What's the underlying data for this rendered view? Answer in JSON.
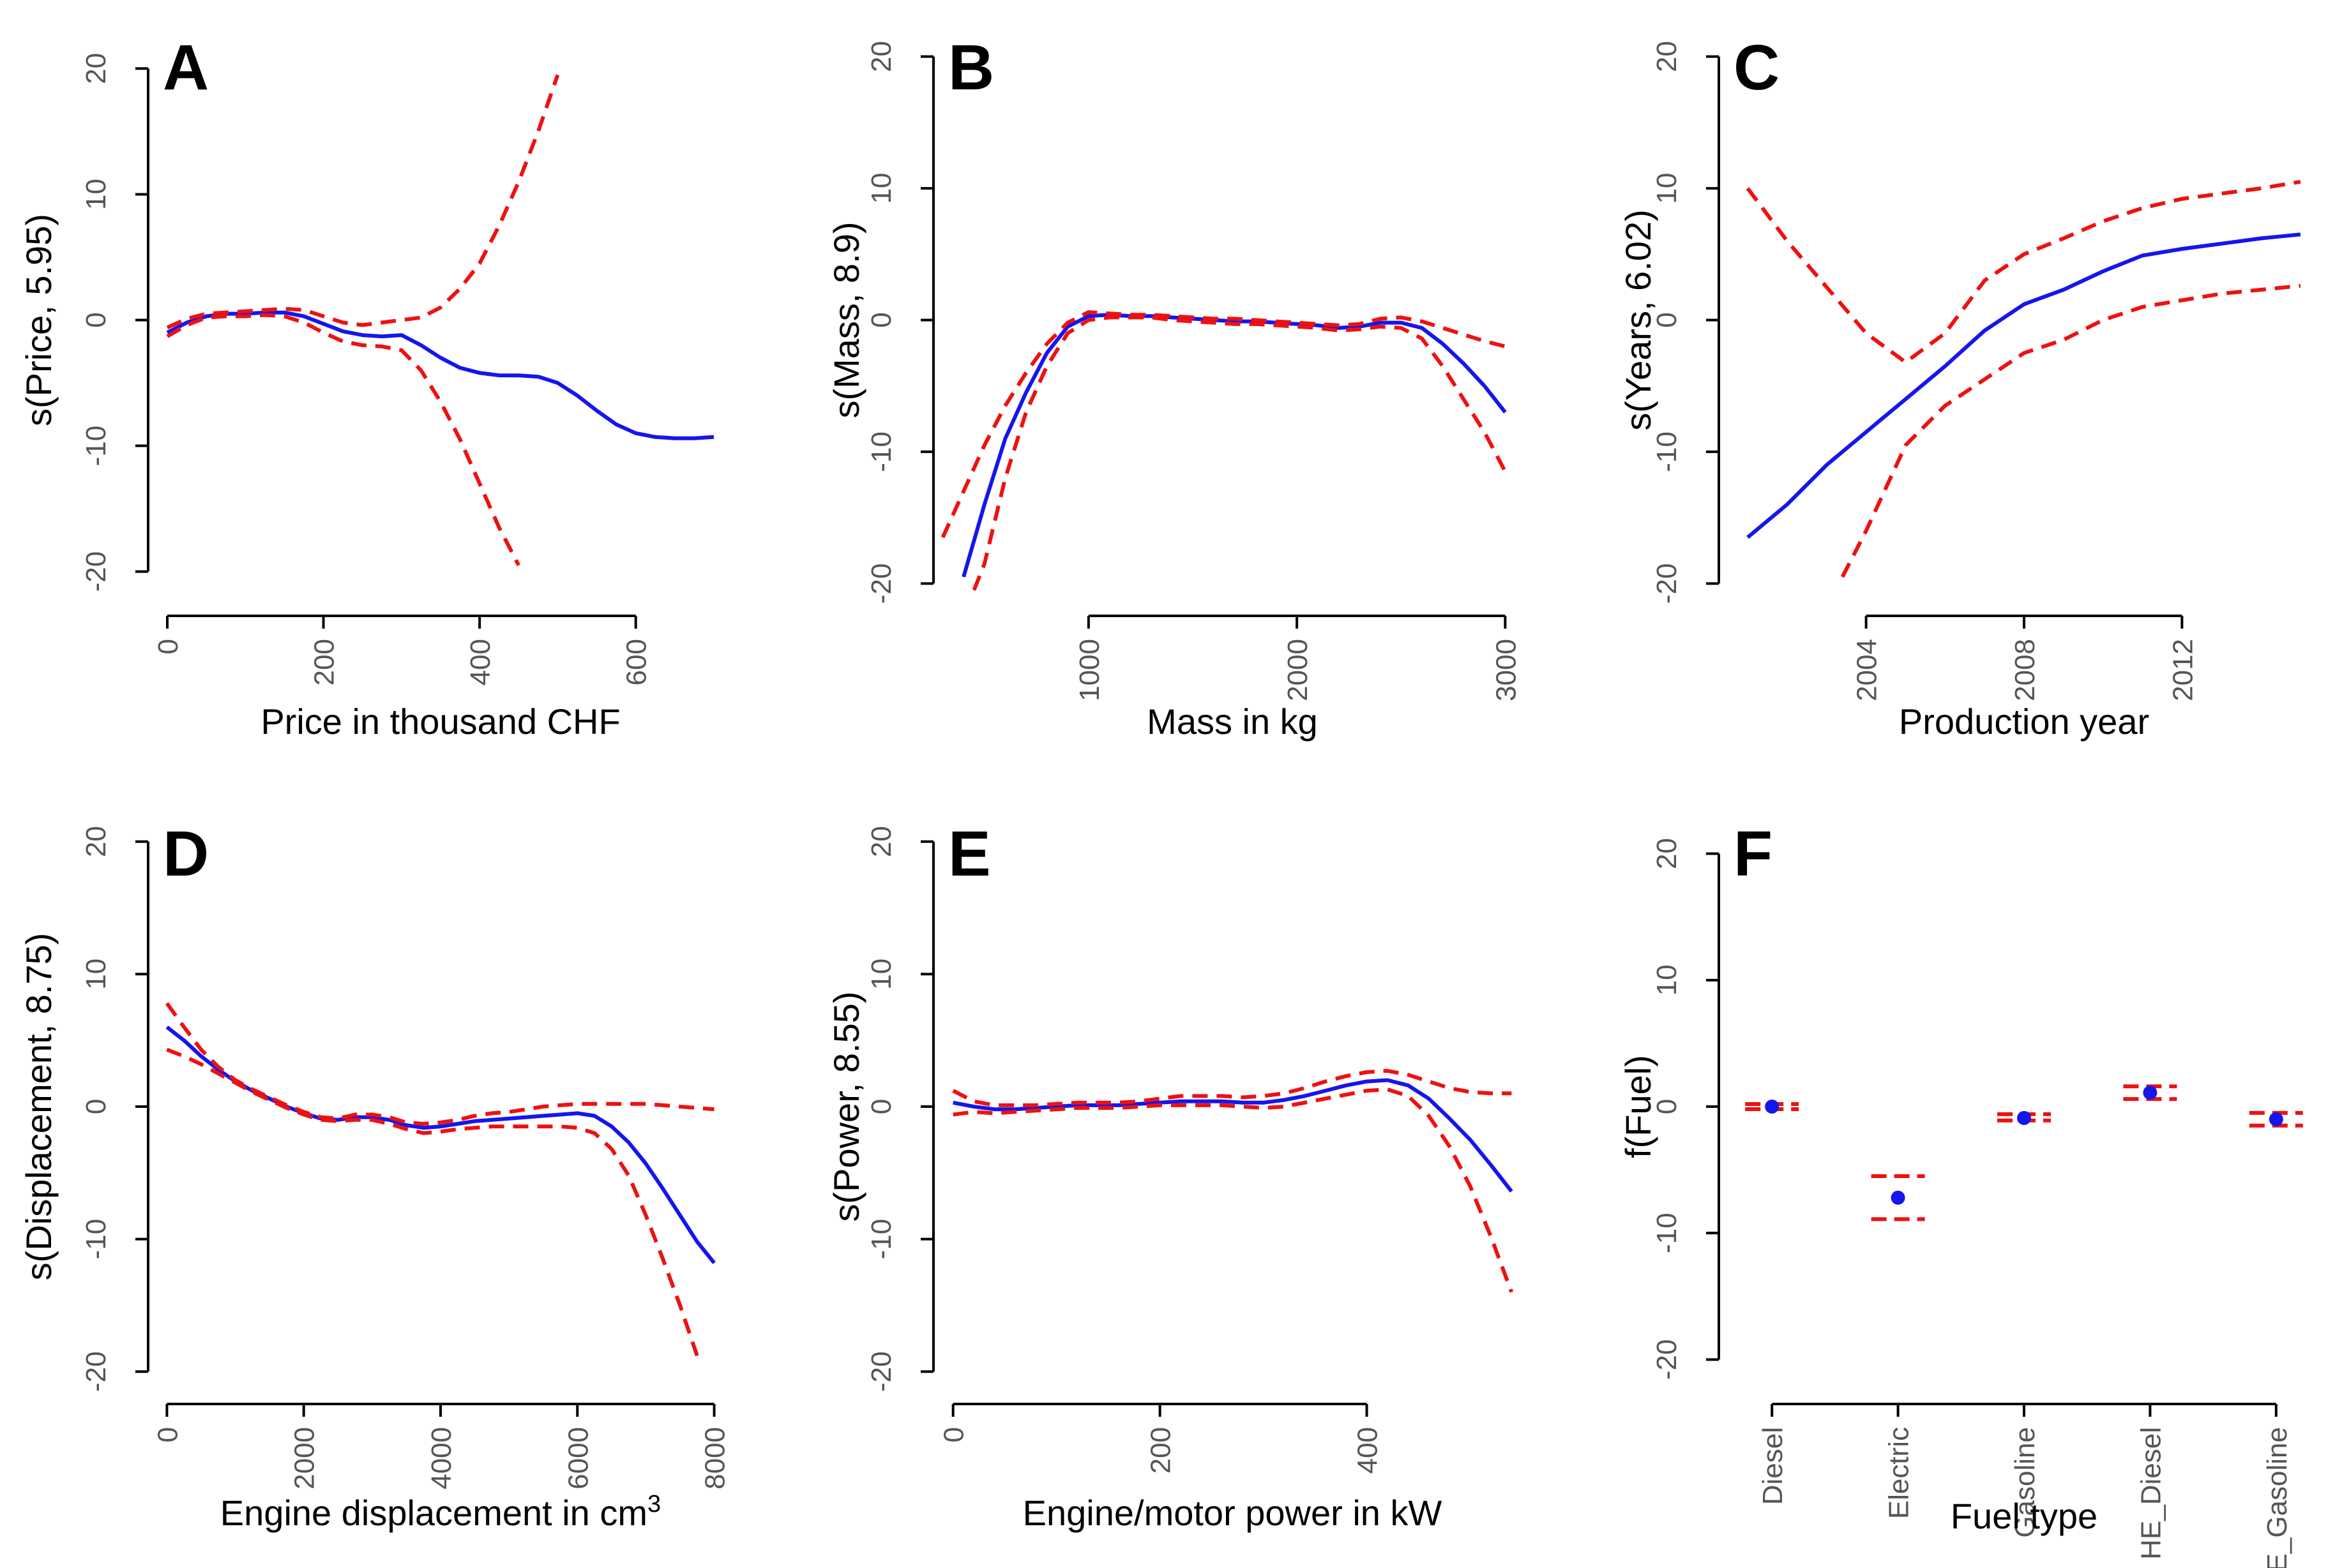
{
  "colors": {
    "estimate": "#1515ee",
    "ci": "#ee1111",
    "axis": "#000000",
    "tick_label": "#555555"
  },
  "chart_data": [
    {
      "panel": "A",
      "type": "line",
      "xlabel": "Price in thousand CHF",
      "ylabel": "s(Price, 5.95)",
      "xlim": [
        -18,
        718
      ],
      "ylim": [
        -22,
        22
      ],
      "xticks": [
        0,
        200,
        400,
        600
      ],
      "xtick_labels": [
        "0",
        "200",
        "400",
        "600"
      ],
      "yticks": [
        -20,
        -10,
        0,
        10,
        20
      ],
      "ytick_labels": [
        "-20",
        "-10",
        "0",
        "10",
        "20"
      ],
      "series": [
        {
          "name": "estimate",
          "style": "solid",
          "x": [
            0,
            25,
            50,
            75,
            100,
            125,
            150,
            175,
            200,
            225,
            250,
            275,
            300,
            325,
            350,
            375,
            400,
            425,
            450,
            475,
            500,
            525,
            550,
            575,
            600,
            625,
            650,
            675,
            700
          ],
          "y": [
            -1.0,
            -0.2,
            0.3,
            0.5,
            0.5,
            0.6,
            0.6,
            0.3,
            -0.3,
            -0.9,
            -1.2,
            -1.3,
            -1.2,
            -2.0,
            -3.0,
            -3.8,
            -4.2,
            -4.4,
            -4.4,
            -4.5,
            -5.0,
            -6.0,
            -7.2,
            -8.3,
            -9.0,
            -9.3,
            -9.4,
            -9.4,
            -9.3
          ]
        },
        {
          "name": "upper 95% CI",
          "style": "dashed",
          "x": [
            0,
            25,
            50,
            75,
            100,
            125,
            150,
            175,
            200,
            225,
            250,
            275,
            300,
            325,
            350,
            375,
            400,
            425,
            450,
            475,
            500
          ],
          "y": [
            -0.6,
            0.1,
            0.5,
            0.6,
            0.7,
            0.8,
            0.9,
            0.8,
            0.3,
            -0.2,
            -0.4,
            -0.2,
            0.0,
            0.2,
            1.0,
            2.5,
            4.5,
            7.5,
            11.0,
            15.0,
            19.5
          ]
        },
        {
          "name": "lower 95% CI",
          "style": "dashed",
          "x": [
            0,
            25,
            50,
            75,
            100,
            125,
            150,
            175,
            200,
            225,
            250,
            275,
            300,
            325,
            350,
            375,
            400,
            425,
            450
          ],
          "y": [
            -1.3,
            -0.4,
            0.2,
            0.3,
            0.3,
            0.4,
            0.3,
            -0.2,
            -1.0,
            -1.7,
            -2.0,
            -2.1,
            -2.4,
            -4.0,
            -6.5,
            -9.5,
            -13.0,
            -16.5,
            -19.5
          ]
        }
      ]
    },
    {
      "panel": "B",
      "type": "line",
      "xlabel": "Mass in kg",
      "ylabel": "s(Mass, 8.9)",
      "xlim": [
        280,
        3100
      ],
      "ylim": [
        -21,
        21
      ],
      "xticks": [
        1000,
        2000,
        3000
      ],
      "xtick_labels": [
        "1000",
        "2000",
        "3000"
      ],
      "yticks": [
        -20,
        -10,
        0,
        10,
        20
      ],
      "ytick_labels": [
        "-20",
        "-10",
        "0",
        "10",
        "20"
      ],
      "series": [
        {
          "name": "estimate",
          "style": "solid",
          "x": [
            400,
            500,
            600,
            700,
            800,
            900,
            1000,
            1100,
            1200,
            1300,
            1400,
            1500,
            1600,
            1700,
            1800,
            1900,
            2000,
            2100,
            2200,
            2300,
            2400,
            2500,
            2600,
            2700,
            2800,
            2900,
            3000
          ],
          "y": [
            -19.5,
            -14.0,
            -9.0,
            -5.5,
            -2.5,
            -0.5,
            0.3,
            0.4,
            0.3,
            0.3,
            0.2,
            0.1,
            0.0,
            -0.1,
            -0.1,
            -0.2,
            -0.3,
            -0.4,
            -0.6,
            -0.5,
            -0.2,
            -0.2,
            -0.6,
            -1.8,
            -3.3,
            -5.0,
            -7.0
          ]
        },
        {
          "name": "upper 95% CI",
          "style": "dashed",
          "x": [
            300,
            400,
            500,
            600,
            700,
            800,
            900,
            1000,
            1100,
            1200,
            1300,
            1400,
            1500,
            1600,
            1700,
            1800,
            1900,
            2000,
            2100,
            2200,
            2300,
            2400,
            2500,
            2600,
            2700,
            2800,
            2900,
            3000
          ],
          "y": [
            -16.5,
            -13.0,
            -9.5,
            -6.5,
            -4.0,
            -1.8,
            -0.2,
            0.6,
            0.5,
            0.4,
            0.4,
            0.3,
            0.2,
            0.1,
            0.1,
            0.0,
            -0.1,
            -0.2,
            -0.3,
            -0.4,
            -0.3,
            0.1,
            0.2,
            -0.1,
            -0.6,
            -1.1,
            -1.6,
            -2.0
          ]
        },
        {
          "name": "lower 95% CI",
          "style": "dashed",
          "x": [
            450,
            500,
            600,
            700,
            800,
            900,
            1000,
            1100,
            1200,
            1300,
            1400,
            1500,
            1600,
            1700,
            1800,
            1900,
            2000,
            2100,
            2200,
            2300,
            2400,
            2500,
            2600,
            2700,
            2800,
            2900,
            3000
          ],
          "y": [
            -20.5,
            -18.5,
            -12.0,
            -7.0,
            -3.5,
            -1.0,
            0.0,
            0.2,
            0.2,
            0.2,
            0.0,
            -0.1,
            -0.2,
            -0.3,
            -0.3,
            -0.4,
            -0.5,
            -0.6,
            -0.8,
            -0.7,
            -0.5,
            -0.6,
            -1.4,
            -3.5,
            -6.0,
            -8.5,
            -11.5
          ]
        }
      ]
    },
    {
      "panel": "C",
      "type": "line",
      "xlabel": "Production year",
      "ylabel": "s(Years, 6.02)",
      "xlim": [
        2000.4,
        2015.6
      ],
      "ylim": [
        -21,
        21
      ],
      "xticks": [
        2004,
        2008,
        2012
      ],
      "xtick_labels": [
        "2004",
        "2008",
        "2012"
      ],
      "yticks": [
        -20,
        -10,
        0,
        10,
        20
      ],
      "ytick_labels": [
        "-20",
        "-10",
        "0",
        "10",
        "20"
      ],
      "series": [
        {
          "name": "estimate",
          "style": "solid",
          "x": [
            2001,
            2002,
            2003,
            2004,
            2005,
            2006,
            2007,
            2008,
            2009,
            2010,
            2011,
            2012,
            2013,
            2014,
            2015
          ],
          "y": [
            -16.5,
            -14.0,
            -11.0,
            -8.5,
            -6.0,
            -3.5,
            -0.8,
            1.2,
            2.3,
            3.7,
            4.9,
            5.4,
            5.8,
            6.2,
            6.5
          ]
        },
        {
          "name": "upper 95% CI",
          "style": "dashed",
          "x": [
            2001,
            2002,
            2003,
            2004,
            2005,
            2006,
            2007,
            2008,
            2009,
            2010,
            2011,
            2012,
            2013,
            2014,
            2015
          ],
          "y": [
            10.0,
            6.0,
            2.5,
            -1.0,
            -3.2,
            -1.0,
            3.0,
            5.0,
            6.2,
            7.5,
            8.5,
            9.2,
            9.6,
            10.0,
            10.5
          ]
        },
        {
          "name": "lower 95% CI",
          "style": "dashed",
          "x": [
            2003.4,
            2004,
            2005,
            2006,
            2007,
            2008,
            2009,
            2010,
            2011,
            2012,
            2013,
            2014,
            2015
          ],
          "y": [
            -19.5,
            -16.0,
            -9.5,
            -6.5,
            -4.5,
            -2.5,
            -1.5,
            0.0,
            1.0,
            1.5,
            2.0,
            2.3,
            2.6
          ]
        }
      ]
    },
    {
      "panel": "D",
      "type": "line",
      "xlabel": "Engine displacement in cm",
      "xlabel_sup": "3",
      "ylabel": "s(Displacement, 8.75)",
      "xlim": [
        -200,
        8200
      ],
      "ylim": [
        -21,
        21
      ],
      "xticks": [
        0,
        2000,
        4000,
        6000,
        8000
      ],
      "xtick_labels": [
        "0",
        "2000",
        "4000",
        "6000",
        "8000"
      ],
      "yticks": [
        -20,
        -10,
        0,
        10,
        20
      ],
      "ytick_labels": [
        "-20",
        "-10",
        "0",
        "10",
        "20"
      ],
      "series": [
        {
          "name": "estimate",
          "style": "solid",
          "x": [
            0,
            250,
            500,
            750,
            1000,
            1250,
            1500,
            1750,
            2000,
            2250,
            2500,
            2750,
            3000,
            3250,
            3500,
            3750,
            4000,
            4250,
            4500,
            4750,
            5000,
            5250,
            5500,
            5750,
            6000,
            6250,
            6500,
            6750,
            7000,
            7250,
            7500,
            7750,
            8000
          ],
          "y": [
            6.0,
            5.0,
            3.8,
            2.8,
            1.9,
            1.2,
            0.6,
            0.0,
            -0.5,
            -0.9,
            -1.0,
            -0.8,
            -0.8,
            -1.0,
            -1.4,
            -1.6,
            -1.5,
            -1.3,
            -1.1,
            -1.0,
            -0.9,
            -0.8,
            -0.7,
            -0.6,
            -0.5,
            -0.7,
            -1.5,
            -2.7,
            -4.3,
            -6.2,
            -8.2,
            -10.2,
            -11.8
          ]
        },
        {
          "name": "upper 95% CI",
          "style": "dashed",
          "x": [
            0,
            250,
            500,
            750,
            1000,
            1250,
            1500,
            1750,
            2000,
            2250,
            2500,
            2750,
            3000,
            3250,
            3500,
            3750,
            4000,
            4250,
            4500,
            4750,
            5000,
            5250,
            5500,
            5750,
            6000,
            6250,
            6500,
            6750,
            7000,
            7250,
            7500,
            7750,
            8000
          ],
          "y": [
            7.8,
            6.0,
            4.3,
            3.0,
            2.0,
            1.3,
            0.7,
            0.1,
            -0.4,
            -0.8,
            -0.9,
            -0.6,
            -0.6,
            -0.8,
            -1.2,
            -1.3,
            -1.2,
            -1.0,
            -0.7,
            -0.5,
            -0.4,
            -0.2,
            0.0,
            0.1,
            0.2,
            0.2,
            0.2,
            0.2,
            0.2,
            0.1,
            0.0,
            -0.1,
            -0.2
          ]
        },
        {
          "name": "lower 95% CI",
          "style": "dashed",
          "x": [
            0,
            250,
            500,
            750,
            1000,
            1250,
            1500,
            1750,
            2000,
            2250,
            2500,
            2750,
            3000,
            3250,
            3500,
            3750,
            4000,
            4250,
            4500,
            4750,
            5000,
            5250,
            5500,
            5750,
            6000,
            6250,
            6500,
            6750,
            7000,
            7250,
            7500,
            7750
          ],
          "y": [
            4.3,
            3.8,
            3.2,
            2.5,
            1.8,
            1.1,
            0.5,
            -0.1,
            -0.6,
            -1.0,
            -1.1,
            -1.0,
            -1.0,
            -1.3,
            -1.7,
            -2.0,
            -1.9,
            -1.7,
            -1.6,
            -1.5,
            -1.5,
            -1.5,
            -1.5,
            -1.5,
            -1.6,
            -2.0,
            -3.2,
            -5.2,
            -8.2,
            -11.5,
            -15.0,
            -18.8
          ]
        }
      ]
    },
    {
      "panel": "E",
      "type": "line",
      "xlabel": "Engine/motor power in kW",
      "ylabel": "s(Power, 8.55)",
      "xlim": [
        -14,
        554
      ],
      "ylim": [
        -21,
        21
      ],
      "xticks": [
        0,
        200,
        400
      ],
      "xtick_labels": [
        "0",
        "200",
        "400"
      ],
      "yticks": [
        -20,
        -10,
        0,
        10,
        20
      ],
      "ytick_labels": [
        "-20",
        "-10",
        "0",
        "10",
        "20"
      ],
      "series": [
        {
          "name": "estimate",
          "style": "solid",
          "x": [
            0,
            20,
            40,
            60,
            80,
            100,
            120,
            140,
            160,
            180,
            200,
            220,
            240,
            260,
            280,
            300,
            320,
            340,
            360,
            380,
            400,
            420,
            440,
            460,
            480,
            500,
            520,
            540
          ],
          "y": [
            0.3,
            0.0,
            -0.2,
            -0.2,
            -0.1,
            0.0,
            0.1,
            0.1,
            0.1,
            0.2,
            0.3,
            0.4,
            0.4,
            0.4,
            0.3,
            0.3,
            0.5,
            0.8,
            1.2,
            1.6,
            1.9,
            2.0,
            1.6,
            0.6,
            -0.9,
            -2.5,
            -4.4,
            -6.4
          ]
        },
        {
          "name": "upper 95% CI",
          "style": "dashed",
          "x": [
            0,
            20,
            40,
            60,
            80,
            100,
            120,
            140,
            160,
            180,
            200,
            220,
            240,
            260,
            280,
            300,
            320,
            340,
            360,
            380,
            400,
            420,
            440,
            460,
            480,
            500,
            520,
            540
          ],
          "y": [
            1.2,
            0.4,
            0.1,
            0.1,
            0.1,
            0.2,
            0.3,
            0.3,
            0.3,
            0.4,
            0.6,
            0.8,
            0.8,
            0.8,
            0.7,
            0.8,
            1.0,
            1.4,
            1.9,
            2.3,
            2.6,
            2.7,
            2.4,
            1.9,
            1.4,
            1.1,
            1.0,
            1.0
          ]
        },
        {
          "name": "lower 95% CI",
          "style": "dashed",
          "x": [
            0,
            20,
            40,
            60,
            80,
            100,
            120,
            140,
            160,
            180,
            200,
            220,
            240,
            260,
            280,
            300,
            320,
            340,
            360,
            380,
            400,
            420,
            440,
            460,
            480,
            500,
            520,
            540
          ],
          "y": [
            -0.6,
            -0.4,
            -0.5,
            -0.4,
            -0.3,
            -0.2,
            -0.1,
            -0.1,
            -0.1,
            0.0,
            0.1,
            0.1,
            0.1,
            0.1,
            0.0,
            -0.1,
            0.0,
            0.3,
            0.6,
            0.9,
            1.2,
            1.3,
            0.8,
            -0.7,
            -3.0,
            -6.0,
            -9.8,
            -14.0
          ]
        }
      ]
    },
    {
      "panel": "F",
      "type": "scatter",
      "xlabel": "Fuel type",
      "ylabel": "f(Fuel)",
      "ylim": [
        -22,
        22
      ],
      "categories": [
        "Diesel",
        "Electric",
        "Gasoline",
        "HE_Diesel",
        "HE_Gasoline"
      ],
      "yticks": [
        -20,
        -10,
        0,
        10,
        20
      ],
      "ytick_labels": [
        "-20",
        "-10",
        "0",
        "10",
        "20"
      ],
      "values": [
        0.0,
        -7.2,
        -0.9,
        1.1,
        -1.0
      ],
      "ci_upper": [
        0.2,
        -5.5,
        -0.6,
        1.6,
        -0.5
      ],
      "ci_lower": [
        -0.2,
        -8.9,
        -1.1,
        0.6,
        -1.5
      ]
    }
  ]
}
